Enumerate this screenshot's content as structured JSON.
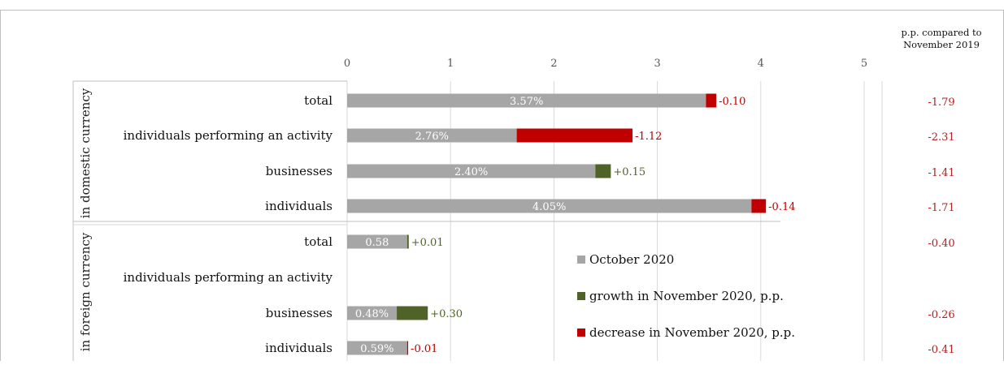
{
  "chart_data": {
    "type": "bar",
    "stacked": true,
    "orientation": "horizontal",
    "xlim": [
      0,
      5
    ],
    "x_ticks": [
      "0",
      "1",
      "2",
      "3",
      "4",
      "5"
    ],
    "grid": true,
    "legend_position": "bottom-right",
    "groups": [
      {
        "label": "in domestic currency",
        "rows": [
          {
            "category": "total",
            "base": 3.57,
            "base_label": "3.57%",
            "change": -0.1,
            "change_label": "-0.10",
            "pp_label": "-1.79"
          },
          {
            "category": "individuals performing an activity",
            "base": 2.76,
            "base_label": "2.76%",
            "change": -1.12,
            "change_label": "-1.12",
            "pp_label": "-2.31"
          },
          {
            "category": "businesses",
            "base": 2.4,
            "base_label": "2.40%",
            "change": 0.15,
            "change_label": "+0.15",
            "pp_label": "-1.41"
          },
          {
            "category": "individuals",
            "base": 4.05,
            "base_label": "4.05%",
            "change": -0.14,
            "change_label": "-0.14",
            "pp_label": "-1.71"
          }
        ]
      },
      {
        "label": "in foreign currency",
        "rows": [
          {
            "category": "total",
            "base": 0.58,
            "base_label": "0.58",
            "change": 0.01,
            "change_label": "+0.01",
            "pp_label": "-0.40"
          },
          {
            "category": "individuals performing an activity",
            "base": null,
            "base_label": "",
            "change": null,
            "change_label": "",
            "pp_label": ""
          },
          {
            "category": "businesses",
            "base": 0.48,
            "base_label": "0.48%",
            "change": 0.3,
            "change_label": "+0.30",
            "pp_label": "-0.26"
          },
          {
            "category": "individuals",
            "base": 0.59,
            "base_label": "0.59%",
            "change": -0.01,
            "change_label": "-0.01",
            "pp_label": "-0.41"
          }
        ]
      }
    ],
    "pp_header": [
      "p.p. compared to",
      "November 2019"
    ],
    "legend": [
      {
        "name": "October 2020",
        "color": "#a6a6a6"
      },
      {
        "name": "growth in November 2020, p.p.",
        "color": "#4f6228"
      },
      {
        "name": "decrease in November 2020, p.p.",
        "color": "#c00000"
      }
    ],
    "colors": {
      "base": "#a6a6a6",
      "growth": "#4f6228",
      "decrease": "#c00000",
      "growth_text": "#4f6228",
      "decrease_text": "#c00000",
      "pp_text": "#b22222"
    }
  }
}
